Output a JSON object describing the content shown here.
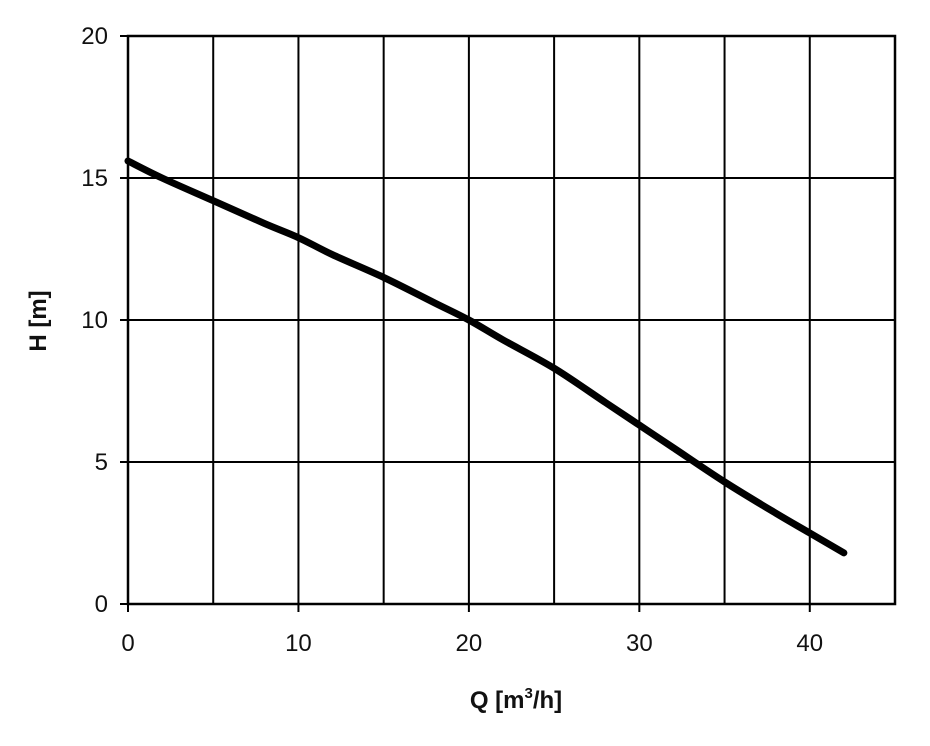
{
  "chart_data": {
    "type": "line",
    "title": "",
    "xlabel": {
      "base": "Q [m",
      "sup": "3",
      "rest": "/h]"
    },
    "ylabel": "H [m]",
    "xlim": [
      0,
      45
    ],
    "ylim": [
      0,
      20
    ],
    "x_ticks": [
      0,
      10,
      20,
      30,
      40
    ],
    "y_ticks": [
      0,
      5,
      10,
      15,
      20
    ],
    "x_grid_step": 5,
    "y_grid_step": 5,
    "grid": true,
    "legend": "none",
    "line_color": "#000000",
    "series": [
      {
        "x": [
          0,
          2,
          5,
          8,
          10,
          12,
          15,
          18,
          20,
          22,
          25,
          28,
          30,
          32,
          35,
          38,
          40,
          42
        ],
        "y": [
          15.6,
          15.0,
          14.2,
          13.4,
          12.9,
          12.3,
          11.5,
          10.6,
          10.0,
          9.3,
          8.3,
          7.1,
          6.3,
          5.5,
          4.3,
          3.2,
          2.5,
          1.8
        ]
      }
    ]
  }
}
